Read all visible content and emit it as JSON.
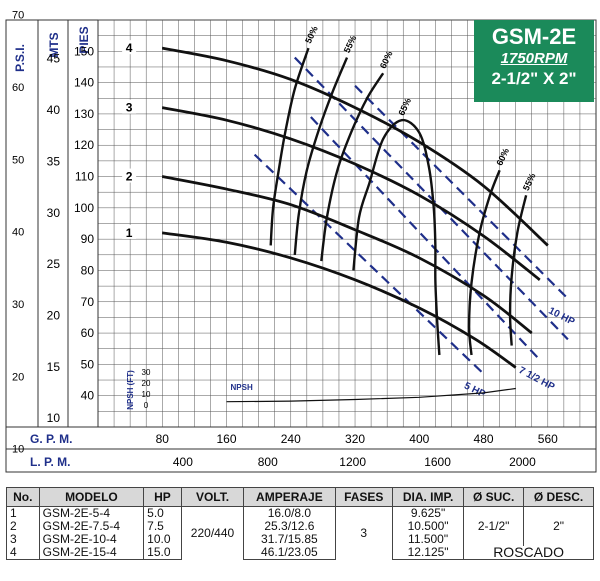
{
  "header": {
    "model": "GSM-2E",
    "rpm": "1750RPM",
    "size": "2-1/2\" X 2\""
  },
  "colors": {
    "grid": "#555555",
    "curve": "#111111",
    "eff": "#1f2f8a",
    "label": "#1f2f8a",
    "header_bg": "#1b8a5a"
  },
  "chart_data": {
    "type": "line",
    "axes": {
      "psi_label": "P.S.I.",
      "psi_ticks": [
        "10",
        "20",
        "30",
        "40",
        "50",
        "60",
        "70"
      ],
      "mts_label": "MTS",
      "mts_ticks": [
        "10",
        "15",
        "20",
        "25",
        "30",
        "35",
        "40",
        "45"
      ],
      "pies_label": "PIES",
      "pies_ticks": [
        "40",
        "50",
        "60",
        "70",
        "80",
        "90",
        "100",
        "110",
        "120",
        "130",
        "140",
        "150"
      ],
      "gpm_label": "G. P. M.",
      "gpm_ticks": [
        80,
        160,
        240,
        320,
        400,
        480,
        560
      ],
      "lpm_label": "L. P. M.",
      "lpm_ticks": [
        400,
        800,
        1200,
        1600,
        2000
      ],
      "gpm_lim": [
        0,
        620
      ],
      "pies_lim": [
        30,
        160
      ]
    },
    "head_curves": [
      {
        "name": "1",
        "points": [
          [
            0,
            93
          ],
          [
            80,
            92
          ],
          [
            160,
            89
          ],
          [
            240,
            84
          ],
          [
            320,
            77
          ],
          [
            400,
            68
          ],
          [
            470,
            58
          ],
          [
            520,
            49
          ]
        ]
      },
      {
        "name": "2",
        "points": [
          [
            0,
            111
          ],
          [
            80,
            110
          ],
          [
            160,
            106
          ],
          [
            240,
            101
          ],
          [
            320,
            93
          ],
          [
            400,
            84
          ],
          [
            480,
            72
          ],
          [
            540,
            60
          ]
        ]
      },
      {
        "name": "3",
        "points": [
          [
            0,
            134
          ],
          [
            80,
            132
          ],
          [
            160,
            128
          ],
          [
            240,
            122
          ],
          [
            320,
            114
          ],
          [
            400,
            104
          ],
          [
            480,
            91
          ],
          [
            550,
            77
          ]
        ]
      },
      {
        "name": "4",
        "points": [
          [
            0,
            152
          ],
          [
            80,
            151
          ],
          [
            160,
            147
          ],
          [
            240,
            141
          ],
          [
            320,
            132
          ],
          [
            400,
            121
          ],
          [
            480,
            107
          ],
          [
            560,
            88
          ]
        ]
      }
    ],
    "efficiency_curves": [
      {
        "name": "50%",
        "points": [
          [
            215,
            88
          ],
          [
            218,
            100
          ],
          [
            225,
            112
          ],
          [
            233,
            124
          ],
          [
            245,
            138
          ],
          [
            262,
            151
          ]
        ]
      },
      {
        "name": "55%",
        "points": [
          [
            245,
            85
          ],
          [
            250,
            98
          ],
          [
            260,
            112
          ],
          [
            275,
            125
          ],
          [
            292,
            137
          ],
          [
            310,
            148
          ]
        ]
      },
      {
        "name": "60%",
        "points": [
          [
            278,
            83
          ],
          [
            285,
            97
          ],
          [
            298,
            112
          ],
          [
            315,
            124
          ],
          [
            335,
            135
          ],
          [
            355,
            143
          ]
        ]
      },
      {
        "name": "65%",
        "points": [
          [
            425,
            53
          ],
          [
            422,
            65
          ],
          [
            420,
            77
          ],
          [
            420,
            88
          ],
          [
            418,
            100
          ],
          [
            412,
            113
          ],
          [
            400,
            124
          ],
          [
            378,
            128
          ],
          [
            355,
            122
          ],
          [
            338,
            108
          ],
          [
            325,
            97
          ],
          [
            318,
            80
          ]
        ]
      },
      {
        "name": "60%",
        "points": [
          [
            465,
            53
          ],
          [
            462,
            62
          ],
          [
            465,
            76
          ],
          [
            475,
            92
          ],
          [
            488,
            104
          ],
          [
            500,
            112
          ]
        ]
      },
      {
        "name": "55%",
        "points": [
          [
            515,
            56
          ],
          [
            513,
            66
          ],
          [
            515,
            78
          ],
          [
            522,
            92
          ],
          [
            533,
            104
          ]
        ]
      }
    ],
    "hp_lines": [
      {
        "name": "5 HP",
        "points": [
          [
            195,
            117
          ],
          [
            480,
            47
          ]
        ]
      },
      {
        "name": "7 1/2 HP",
        "points": [
          [
            265,
            129
          ],
          [
            548,
            52
          ]
        ]
      },
      {
        "name": "10 HP",
        "points": [
          [
            320,
            139
          ],
          [
            585,
            71
          ]
        ]
      },
      {
        "name": "",
        "points": [
          [
            245,
            148
          ],
          [
            585,
            58
          ]
        ]
      }
    ],
    "npsh": {
      "label": "NPSH",
      "axis_label": "NPSH (FT)",
      "ticks": [
        "30",
        "20",
        "10",
        "0"
      ],
      "points": [
        [
          160,
          3
        ],
        [
          240,
          3.5
        ],
        [
          320,
          5
        ],
        [
          400,
          7
        ],
        [
          480,
          11
        ],
        [
          520,
          15
        ]
      ]
    }
  },
  "table": {
    "headers": [
      "No.",
      "MODELO",
      "HP",
      "VOLT.",
      "AMPERAJE",
      "FASES",
      "DIA. IMP.",
      "Ø SUC.",
      "Ø DESC."
    ],
    "rows": [
      {
        "no": "1",
        "modelo": "GSM-2E-5-4",
        "hp": "5.0",
        "amp": "16.0/8.0",
        "dia": "9.625\""
      },
      {
        "no": "2",
        "modelo": "GSM-2E-7.5-4",
        "hp": "7.5",
        "amp": "25.3/12.6",
        "dia": "10.500\""
      },
      {
        "no": "3",
        "modelo": "GSM-2E-10-4",
        "hp": "10.0",
        "amp": "31.7/15.85",
        "dia": "11.500\""
      },
      {
        "no": "4",
        "modelo": "GSM-2E-15-4",
        "hp": "15.0",
        "amp": "46.1/23.05",
        "dia": "12.125\""
      }
    ],
    "volt": "220/440",
    "fases": "3",
    "suc": "2-1/2\"",
    "desc": "2\"",
    "roscado": "ROSCADO"
  }
}
